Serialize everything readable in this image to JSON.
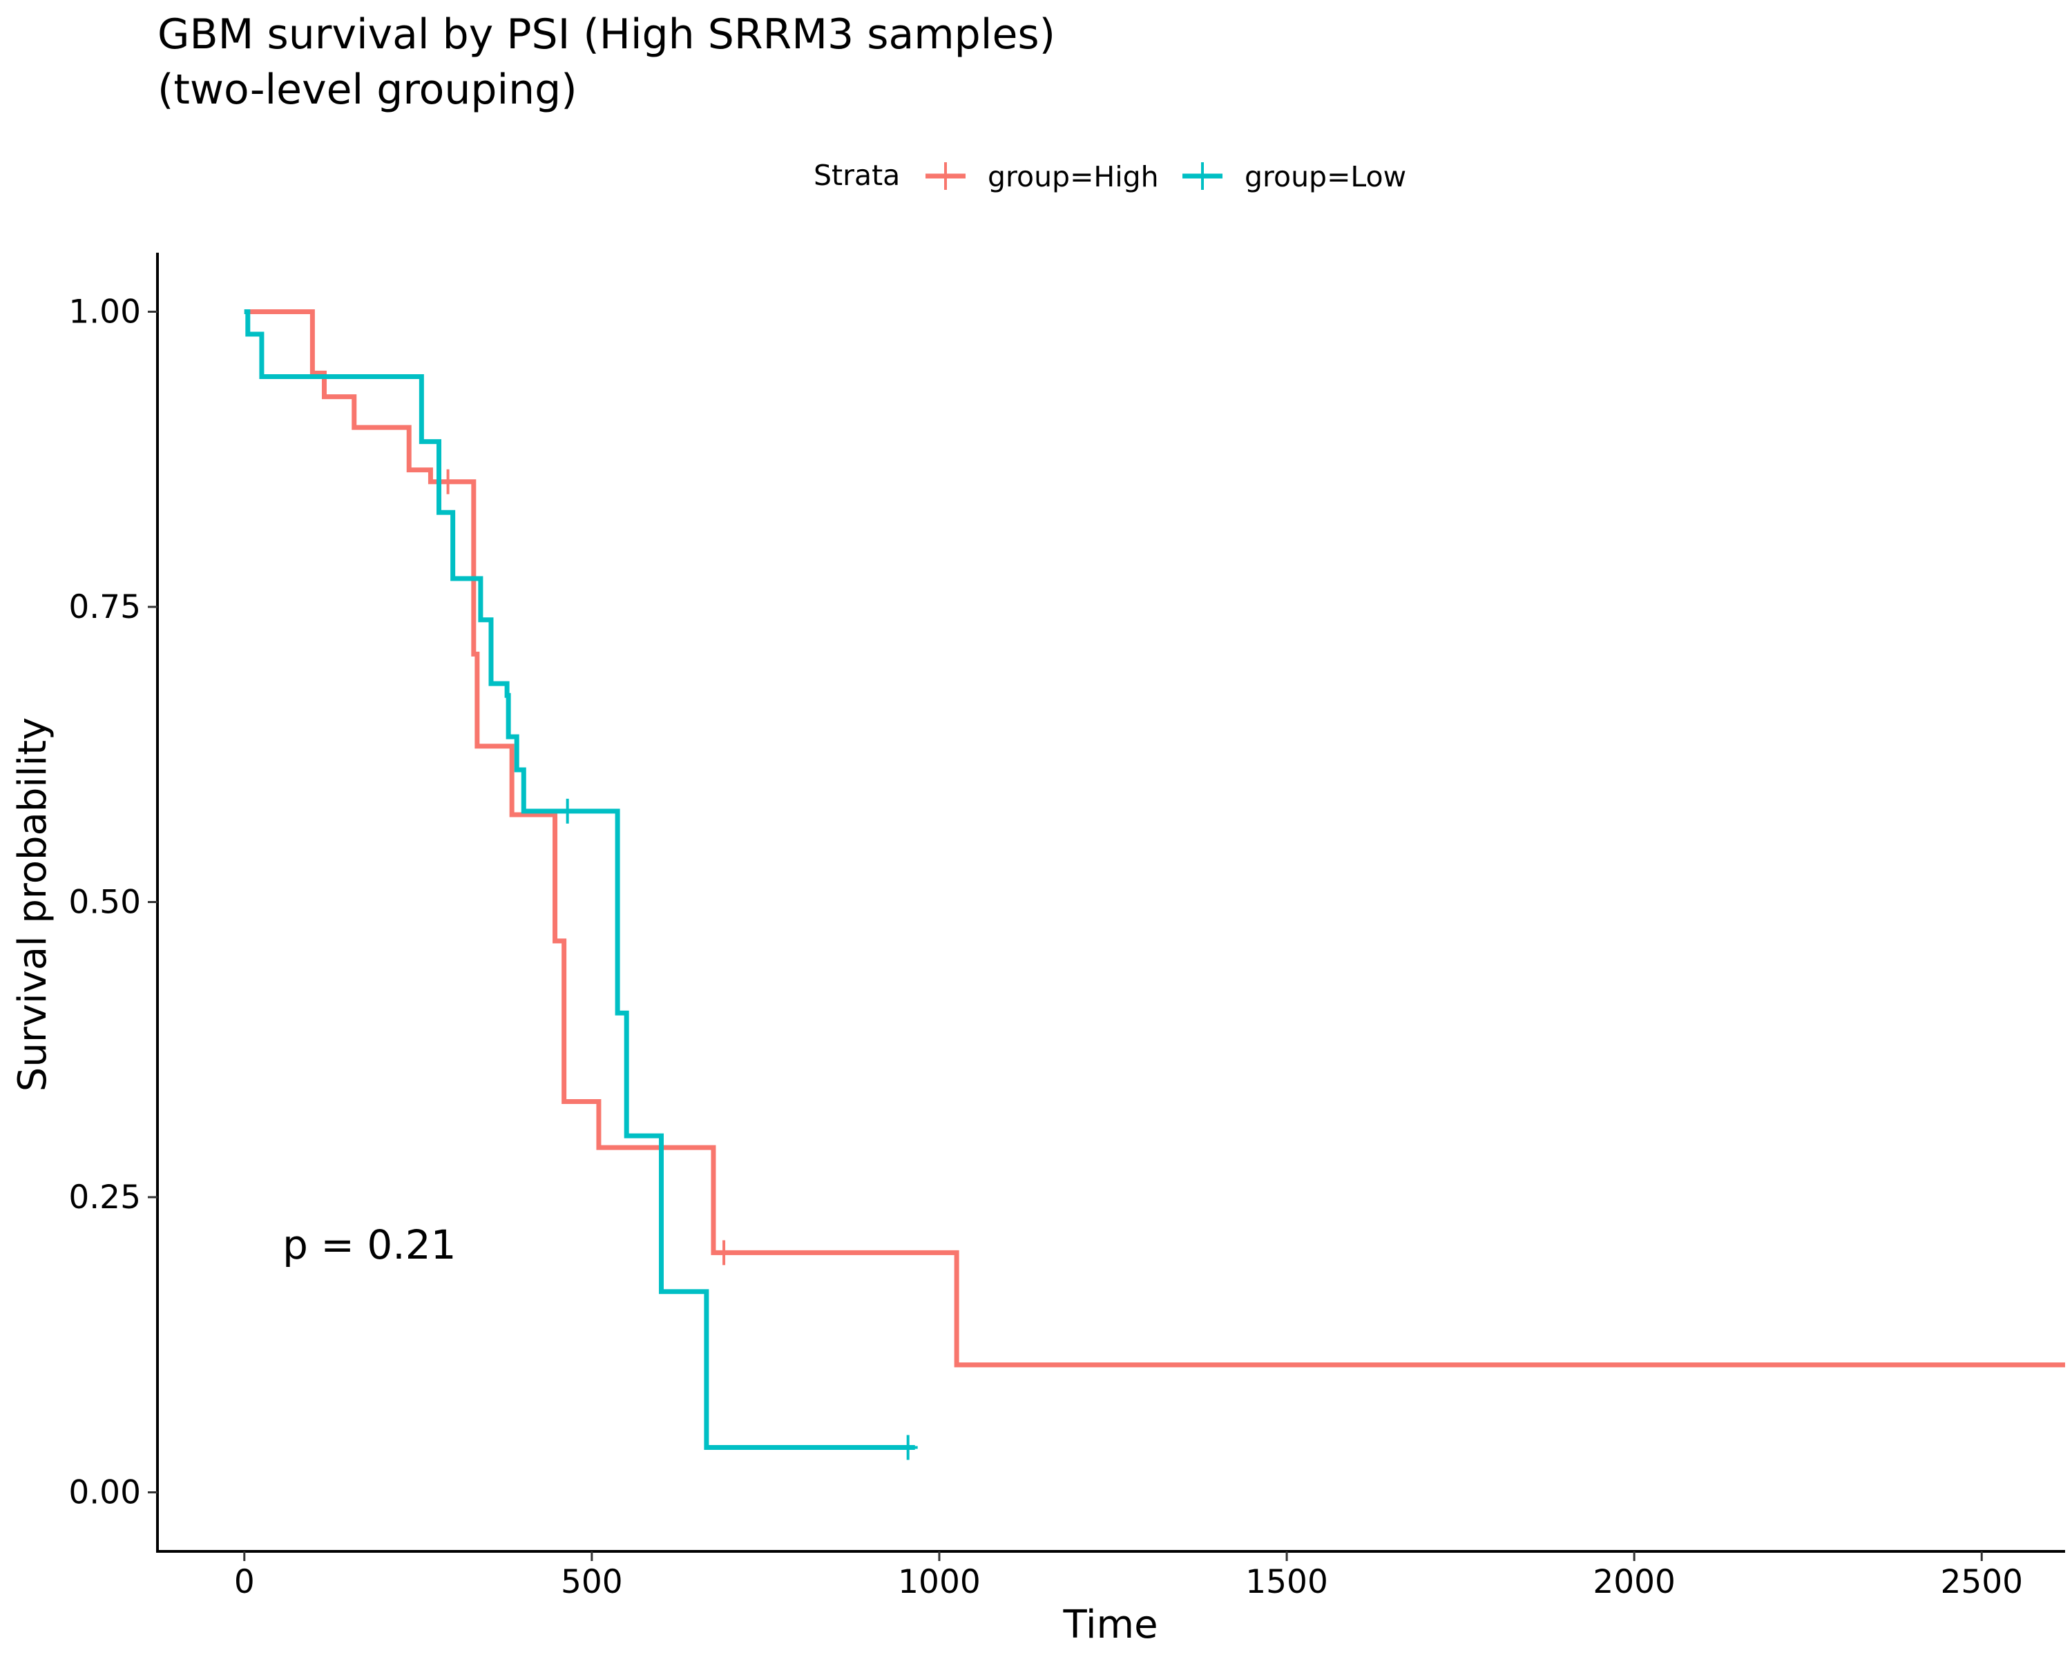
{
  "chart_data": {
    "type": "line",
    "title_lines": [
      "GBM survival by PSI (High SRRM3 samples)",
      "(two-level grouping)"
    ],
    "xlabel": "Time",
    "ylabel": "Survival probability",
    "xlim": [
      -125,
      2620
    ],
    "ylim": [
      -0.05,
      1.05
    ],
    "x_ticks": [
      0,
      500,
      1000,
      1500,
      2000,
      2500
    ],
    "x_tick_labels": [
      "0",
      "500",
      "1000",
      "1500",
      "2000",
      "2500"
    ],
    "y_ticks": [
      0,
      0.25,
      0.5,
      0.75,
      1.0
    ],
    "y_tick_labels": [
      "0.00",
      "0.25",
      "0.50",
      "0.75",
      "1.00"
    ],
    "grid": false,
    "legend": {
      "title": "Strata",
      "placement": "top",
      "entries": [
        "group=High",
        "group=Low"
      ]
    },
    "annotation": "p = 0.21",
    "annotation_position": {
      "x": 55,
      "y": 0.198
    },
    "series": [
      {
        "name": "group=High",
        "color": "#F8766D",
        "step_times": [
          0,
          98,
          115,
          158,
          237,
          268,
          330,
          335,
          385,
          447,
          460,
          510,
          675,
          1025,
          2620
        ],
        "step_values": [
          1.0,
          0.948,
          0.928,
          0.902,
          0.866,
          0.856,
          0.71,
          0.632,
          0.574,
          0.467,
          0.331,
          0.292,
          0.203,
          0.108,
          0.108
        ],
        "censored": [
          {
            "time": 293,
            "value": 0.856
          },
          {
            "time": 690,
            "value": 0.203
          }
        ]
      },
      {
        "name": "group=Low",
        "color": "#00BFC4",
        "step_times": [
          0,
          5,
          25,
          255,
          280,
          300,
          340,
          355,
          378,
          380,
          392,
          402,
          537,
          550,
          600,
          665,
          965
        ],
        "step_values": [
          1.0,
          0.981,
          0.945,
          0.89,
          0.83,
          0.774,
          0.739,
          0.685,
          0.675,
          0.64,
          0.612,
          0.577,
          0.406,
          0.302,
          0.17,
          0.038,
          0.038
        ],
        "censored": [
          {
            "time": 465,
            "value": 0.577
          },
          {
            "time": 955,
            "value": 0.038
          }
        ]
      }
    ]
  }
}
